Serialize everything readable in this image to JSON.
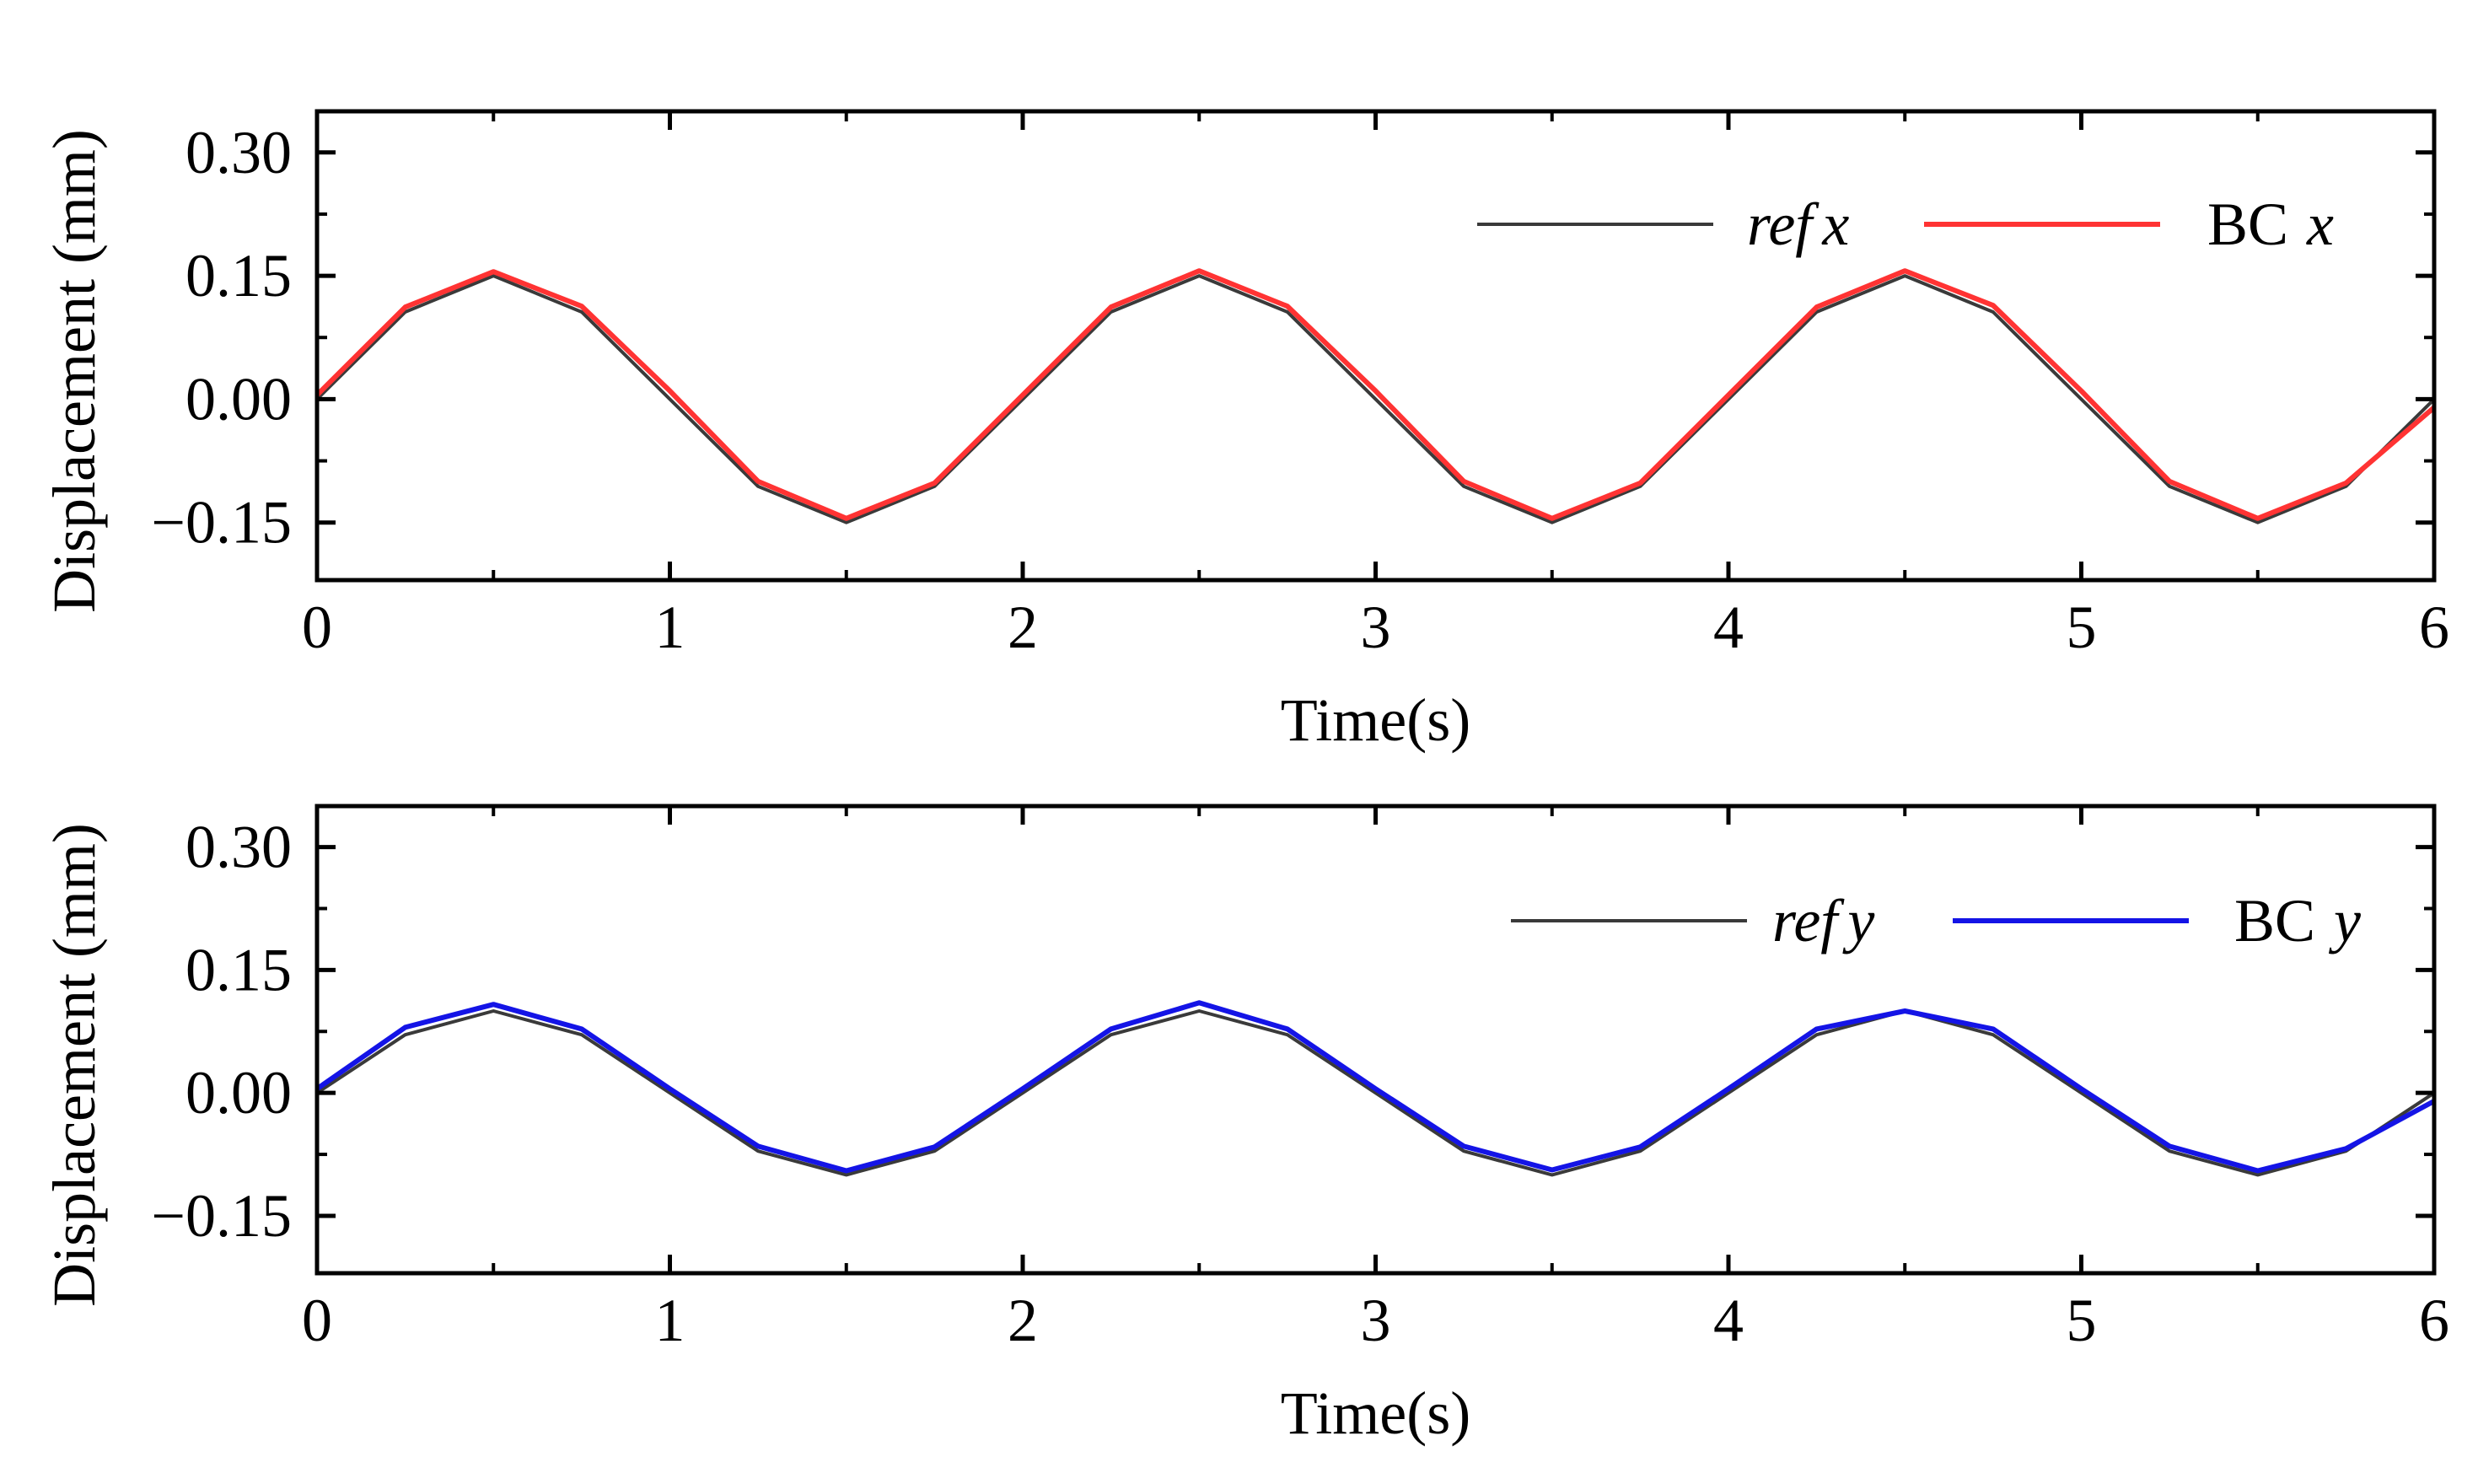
{
  "chart_data": [
    {
      "type": "line",
      "xlabel": "Time(s)",
      "ylabel": "Displacement (mm)",
      "xlim": [
        0,
        6
      ],
      "ylim": [
        -0.22,
        0.35
      ],
      "x_ticks": [
        "0",
        "1",
        "2",
        "3",
        "4",
        "5",
        "6"
      ],
      "y_ticks": [
        "0.30",
        "0.15",
        "0.00",
        "-0.15"
      ],
      "legend": "top-right",
      "grid": false,
      "series": [
        {
          "name_main": "ref",
          "name_suffix": "x",
          "color": "#3a3a3a",
          "x": [
            0,
            0.25,
            0.5,
            0.75,
            1.0,
            1.25,
            1.5,
            1.75,
            2.0,
            2.25,
            2.5,
            2.75,
            3.0,
            3.25,
            3.5,
            3.75,
            4.0,
            4.25,
            4.5,
            4.75,
            5.0,
            5.25,
            5.5,
            5.75,
            6.0
          ],
          "values": [
            0,
            0.106,
            0.15,
            0.106,
            0,
            -0.106,
            -0.15,
            -0.106,
            0,
            0.106,
            0.15,
            0.106,
            0,
            -0.106,
            -0.15,
            -0.106,
            0,
            0.106,
            0.15,
            0.106,
            0,
            -0.106,
            -0.15,
            -0.106,
            0
          ]
        },
        {
          "name_main": "BC",
          "name_suffix": "x",
          "color": "#ff3333",
          "x": [
            0,
            0.25,
            0.5,
            0.75,
            1.0,
            1.25,
            1.5,
            1.75,
            2.0,
            2.25,
            2.5,
            2.75,
            3.0,
            3.25,
            3.5,
            3.75,
            4.0,
            4.25,
            4.5,
            4.75,
            5.0,
            5.25,
            5.5,
            5.75,
            6.0
          ],
          "values": [
            0.005,
            0.112,
            0.155,
            0.113,
            0.01,
            -0.1,
            -0.145,
            -0.102,
            0.005,
            0.112,
            0.156,
            0.113,
            0.01,
            -0.1,
            -0.145,
            -0.102,
            0.005,
            0.112,
            0.156,
            0.114,
            0.01,
            -0.1,
            -0.145,
            -0.102,
            -0.01
          ]
        }
      ]
    },
    {
      "type": "line",
      "xlabel": "Time(s)",
      "ylabel": "Displacement (mm)",
      "xlim": [
        0,
        6
      ],
      "ylim": [
        -0.22,
        0.35
      ],
      "x_ticks": [
        "0",
        "1",
        "2",
        "3",
        "4",
        "5",
        "6"
      ],
      "y_ticks": [
        "0.30",
        "0.15",
        "0.00",
        "-0.15"
      ],
      "legend": "top-right",
      "grid": false,
      "series": [
        {
          "name_main": "ref",
          "name_suffix": "y",
          "color": "#3a3a3a",
          "x": [
            0,
            0.25,
            0.5,
            0.75,
            1.0,
            1.25,
            1.5,
            1.75,
            2.0,
            2.25,
            2.5,
            2.75,
            3.0,
            3.25,
            3.5,
            3.75,
            4.0,
            4.25,
            4.5,
            4.75,
            5.0,
            5.25,
            5.5,
            5.75,
            6.0
          ],
          "values": [
            0,
            0.071,
            0.1,
            0.071,
            0,
            -0.071,
            -0.1,
            -0.071,
            0,
            0.071,
            0.1,
            0.071,
            0,
            -0.071,
            -0.1,
            -0.071,
            0,
            0.071,
            0.1,
            0.071,
            0,
            -0.071,
            -0.1,
            -0.071,
            0
          ]
        },
        {
          "name_main": "BC",
          "name_suffix": "y",
          "color": "#1414e6",
          "x": [
            0,
            0.25,
            0.5,
            0.75,
            1.0,
            1.25,
            1.5,
            1.75,
            2.0,
            2.25,
            2.5,
            2.75,
            3.0,
            3.25,
            3.5,
            3.75,
            4.0,
            4.25,
            4.5,
            4.75,
            5.0,
            5.25,
            5.5,
            5.75,
            6.0
          ],
          "values": [
            0.005,
            0.08,
            0.108,
            0.078,
            0.005,
            -0.065,
            -0.095,
            -0.066,
            0.005,
            0.078,
            0.11,
            0.078,
            0.005,
            -0.065,
            -0.094,
            -0.066,
            0.005,
            0.078,
            0.1,
            0.078,
            0.005,
            -0.065,
            -0.095,
            -0.068,
            -0.01
          ]
        }
      ]
    }
  ]
}
